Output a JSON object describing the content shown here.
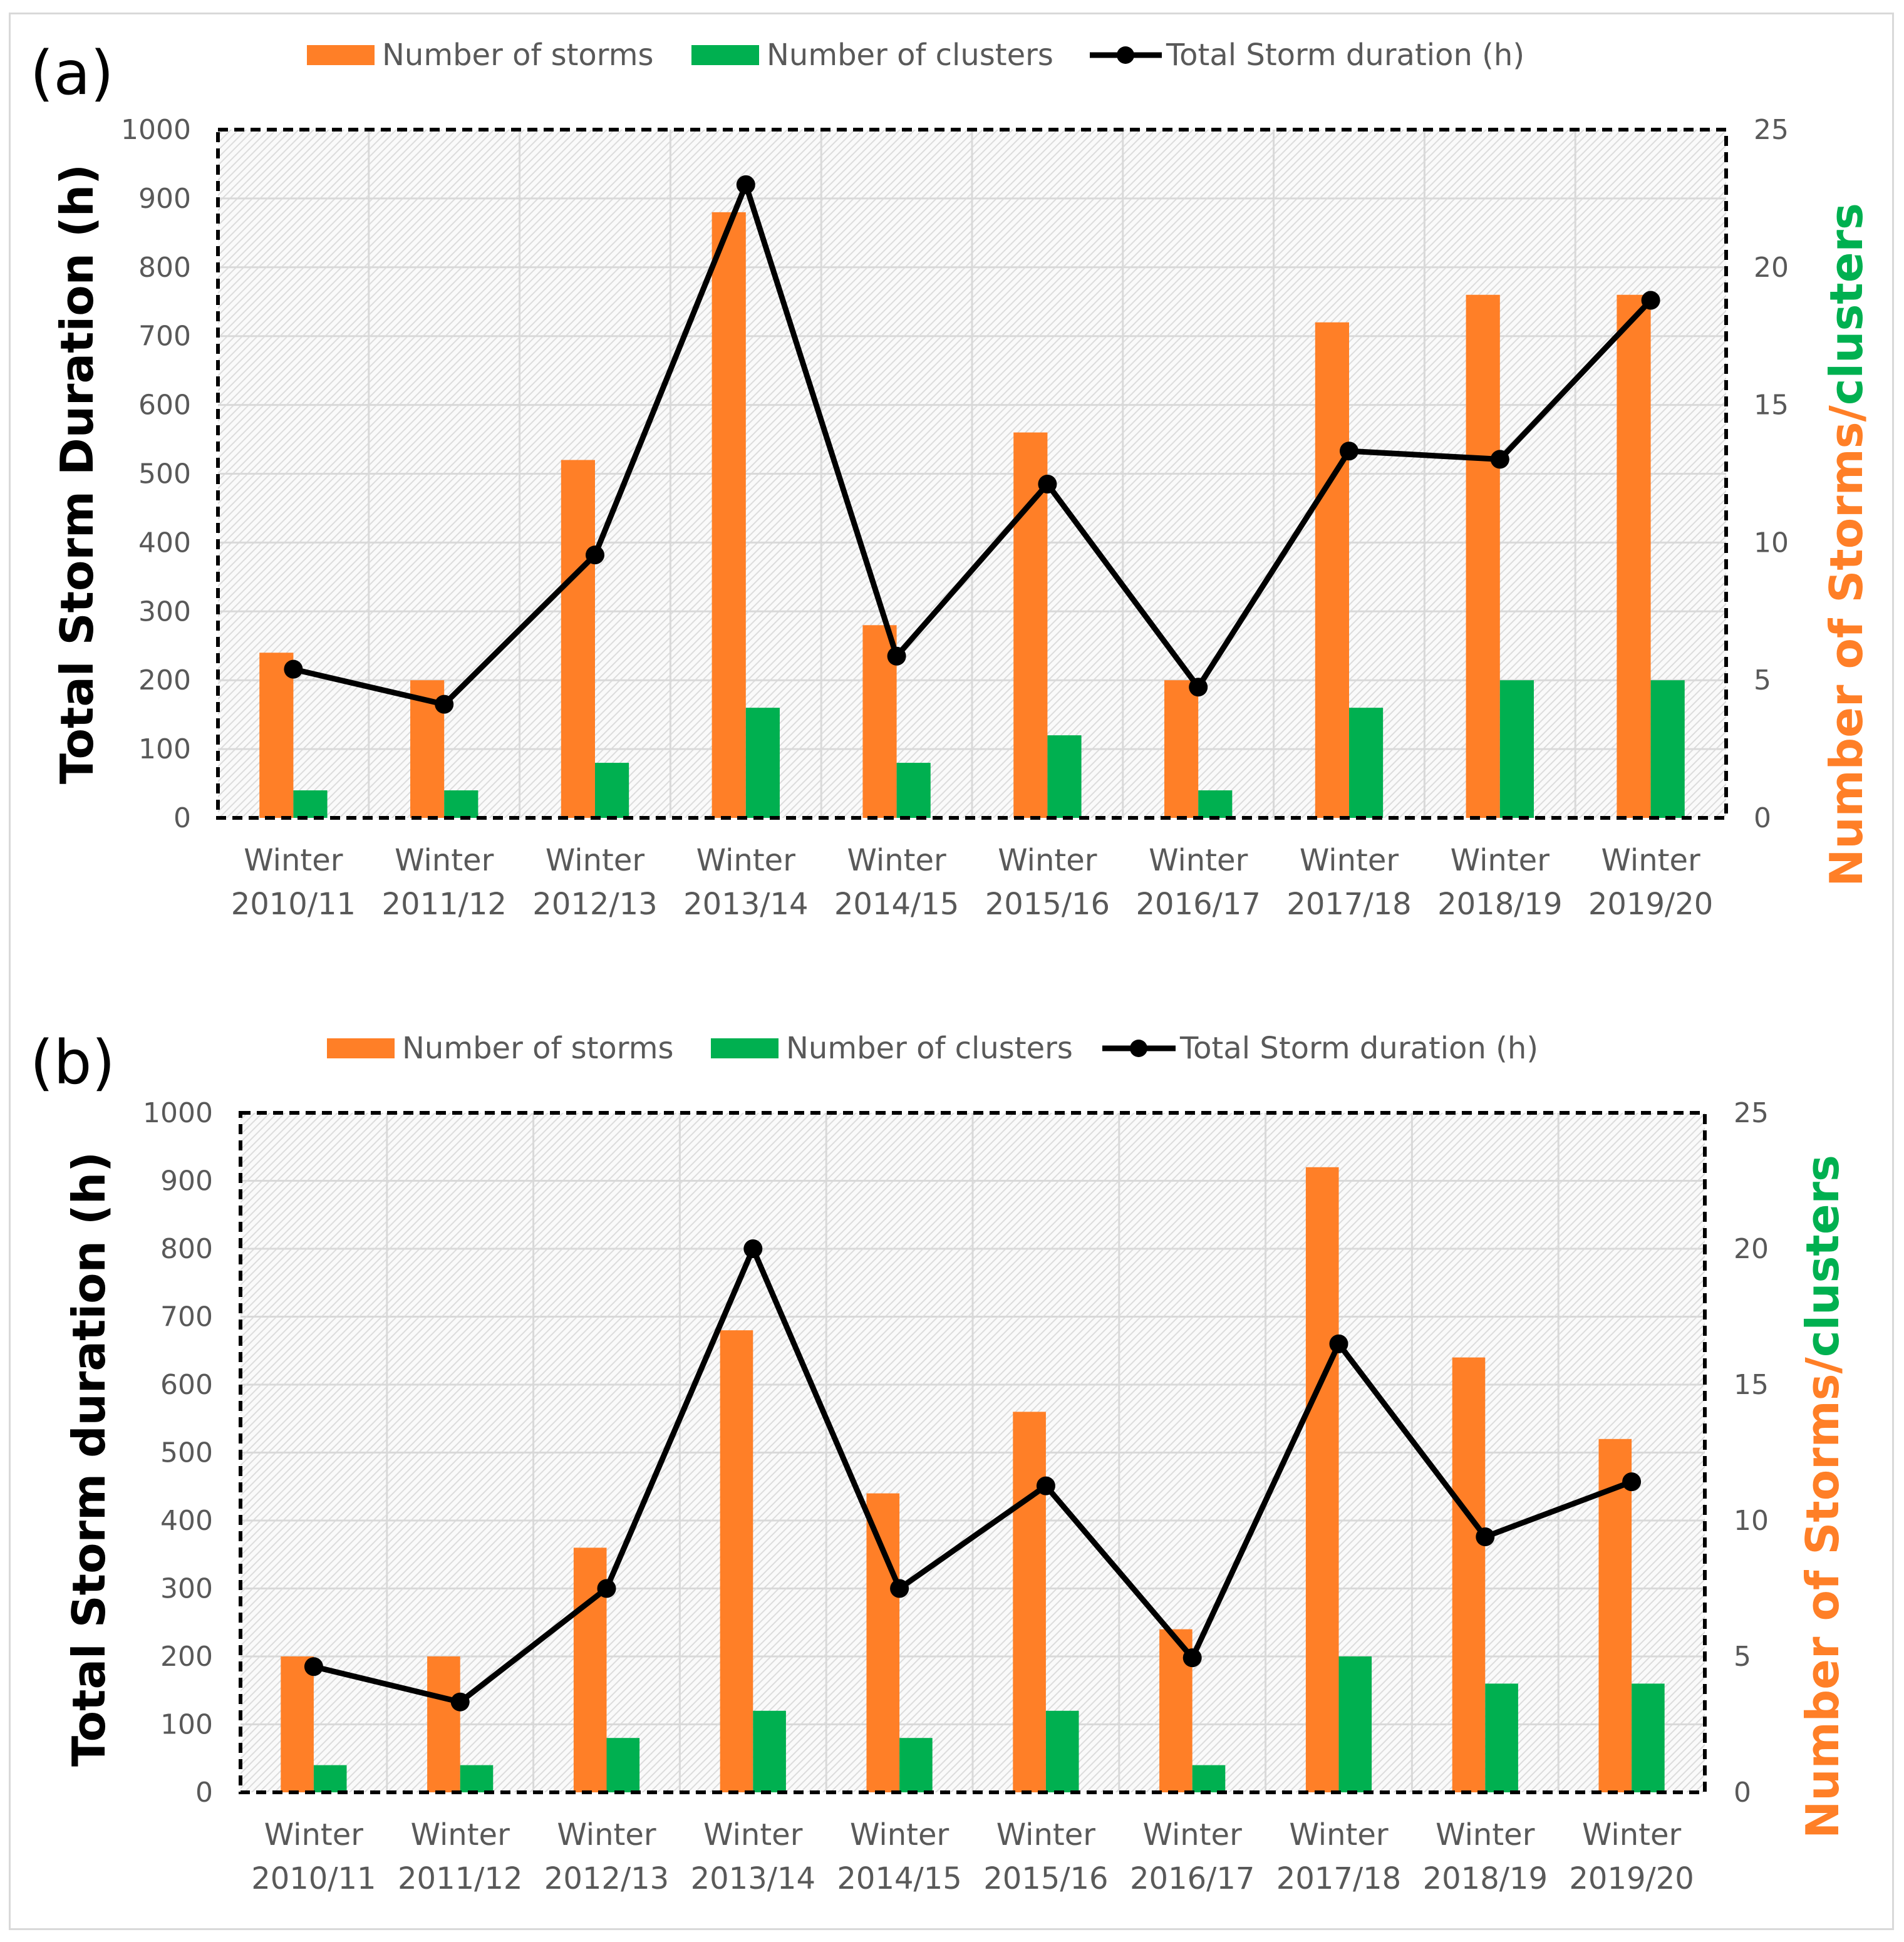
{
  "colors": {
    "storms": "#ff7f27",
    "clusters": "#00b050",
    "duration": "#000000",
    "grid": "#d9d9d9",
    "tick_text": "#595959"
  },
  "chart_data": [
    {
      "type": "bar",
      "panel_label": "(a)",
      "categories": [
        [
          "Winter",
          "2010/11"
        ],
        [
          "Winter",
          "2011/12"
        ],
        [
          "Winter",
          "2012/13"
        ],
        [
          "Winter",
          "2013/14"
        ],
        [
          "Winter",
          "2014/15"
        ],
        [
          "Winter",
          "2015/16"
        ],
        [
          "Winter",
          "2016/17"
        ],
        [
          "Winter",
          "2017/18"
        ],
        [
          "Winter",
          "2018/19"
        ],
        [
          "Winter",
          "2019/20"
        ]
      ],
      "legend": [
        "Number of storms",
        "Number of clusters",
        "Total Storm duration (h)"
      ],
      "ylabel_left": "Total Storm Duration (h)",
      "ylabel_right_parts": [
        "Number of Storms",
        "/",
        "clusters"
      ],
      "ylim_left": [
        0,
        1000
      ],
      "yticks_left": [
        0,
        100,
        200,
        300,
        400,
        500,
        600,
        700,
        800,
        900,
        1000
      ],
      "ylim_right": [
        0,
        25
      ],
      "yticks_right": [
        0,
        5,
        10,
        15,
        20,
        25
      ],
      "series": [
        {
          "name": "Number of storms",
          "axis": "right",
          "kind": "bar",
          "values": [
            6,
            5,
            13,
            22,
            7,
            14,
            5,
            18,
            19,
            19
          ]
        },
        {
          "name": "Number of clusters",
          "axis": "right",
          "kind": "bar",
          "values": [
            1,
            1,
            2,
            4,
            2,
            3,
            1,
            4,
            5,
            5
          ]
        },
        {
          "name": "Total Storm duration (h)",
          "axis": "left",
          "kind": "line",
          "values": [
            216,
            165,
            382,
            920,
            235,
            485,
            190,
            533,
            521,
            752
          ]
        }
      ]
    },
    {
      "type": "bar",
      "panel_label": "(b)",
      "categories": [
        [
          "Winter",
          "2010/11"
        ],
        [
          "Winter",
          "2011/12"
        ],
        [
          "Winter",
          "2012/13"
        ],
        [
          "Winter",
          "2013/14"
        ],
        [
          "Winter",
          "2014/15"
        ],
        [
          "Winter",
          "2015/16"
        ],
        [
          "Winter",
          "2016/17"
        ],
        [
          "Winter",
          "2017/18"
        ],
        [
          "Winter",
          "2018/19"
        ],
        [
          "Winter",
          "2019/20"
        ]
      ],
      "legend": [
        "Number of storms",
        "Number of clusters",
        "Total Storm duration (h)"
      ],
      "ylabel_left": "Total Storm duration (h)",
      "ylabel_right_parts": [
        "Number of Storms",
        "/",
        "clusters"
      ],
      "ylim_left": [
        0,
        1000
      ],
      "yticks_left": [
        0,
        100,
        200,
        300,
        400,
        500,
        600,
        700,
        800,
        900,
        1000
      ],
      "ylim_right": [
        0,
        25
      ],
      "yticks_right": [
        0,
        5,
        10,
        15,
        20,
        25
      ],
      "series": [
        {
          "name": "Number of storms",
          "axis": "right",
          "kind": "bar",
          "values": [
            5,
            5,
            9,
            17,
            11,
            14,
            6,
            23,
            16,
            13
          ]
        },
        {
          "name": "Number of clusters",
          "axis": "right",
          "kind": "bar",
          "values": [
            1,
            1,
            2,
            3,
            2,
            3,
            1,
            5,
            4,
            4
          ]
        },
        {
          "name": "Total Storm duration (h)",
          "axis": "left",
          "kind": "line",
          "values": [
            185,
            133,
            300,
            800,
            300,
            451,
            198,
            660,
            376,
            457
          ]
        }
      ]
    }
  ]
}
